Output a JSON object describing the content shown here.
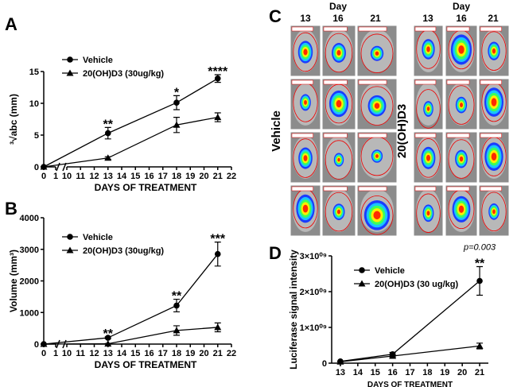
{
  "panel_labels": [
    "A",
    "B",
    "C",
    "D"
  ],
  "image_panel": {
    "day_label": "Day",
    "days": [
      "13",
      "16",
      "21"
    ],
    "groups": [
      "Vehicle",
      "20(OH)D3"
    ]
  },
  "chart_data": [
    {
      "type": "line",
      "x_label": "DAYS OF TREATMENT",
      "y_label": "³√abc (mm)",
      "x": [
        0,
        13,
        18,
        21
      ],
      "xlim": [
        0,
        22
      ],
      "x_break": [
        1,
        10
      ],
      "xticks": [
        0,
        1,
        10,
        11,
        12,
        13,
        14,
        15,
        16,
        17,
        18,
        19,
        20,
        21,
        22
      ],
      "ylim": [
        0,
        15
      ],
      "yticks": [
        0,
        5,
        10,
        15
      ],
      "legend": "upper left",
      "series": [
        {
          "name": "Vehicle",
          "color": "#000000",
          "marker": "circle",
          "values": [
            0,
            5.3,
            10.1,
            13.9
          ],
          "errors": [
            0,
            0.9,
            1.1,
            0.6
          ]
        },
        {
          "name": "20(OH)D3 (30ug/kg)",
          "color": "#000000",
          "marker": "triangle",
          "values": [
            0,
            1.4,
            6.6,
            7.8
          ],
          "errors": [
            0,
            0.2,
            1.2,
            0.7
          ]
        }
      ],
      "annotations": [
        {
          "x": 13,
          "text": "**"
        },
        {
          "x": 18,
          "text": "*"
        },
        {
          "x": 21,
          "text": "****"
        }
      ]
    },
    {
      "type": "line",
      "x_label": "DAYS OF TREATMENT",
      "y_label": "Volume (mm³)",
      "x": [
        0,
        13,
        18,
        21
      ],
      "xlim": [
        0,
        22
      ],
      "x_break": [
        1,
        10
      ],
      "xticks": [
        0,
        1,
        10,
        11,
        12,
        13,
        14,
        15,
        16,
        17,
        18,
        19,
        20,
        21,
        22
      ],
      "ylim": [
        0,
        4000
      ],
      "yticks": [
        0,
        1000,
        2000,
        3000,
        4000
      ],
      "legend": "upper left",
      "series": [
        {
          "name": "Vehicle",
          "color": "#000000",
          "marker": "circle",
          "values": [
            0,
            200,
            1220,
            2850
          ],
          "errors": [
            0,
            30,
            200,
            380
          ]
        },
        {
          "name": "20(OH)D3 (30ug/kg)",
          "color": "#000000",
          "marker": "triangle",
          "values": [
            0,
            10,
            430,
            530
          ],
          "errors": [
            0,
            10,
            150,
            140
          ]
        }
      ],
      "annotations": [
        {
          "x": 13,
          "text": "**"
        },
        {
          "x": 18,
          "text": "**"
        },
        {
          "x": 21,
          "text": "***"
        }
      ]
    },
    {
      "type": "line",
      "x_label": "DAYS OF TREATMENT",
      "y_label": "Luciferase signal intensity",
      "x": [
        13,
        16,
        21
      ],
      "xlim": [
        12.5,
        21.5
      ],
      "xticks": [
        13,
        14,
        15,
        16,
        17,
        18,
        19,
        20,
        21
      ],
      "ylim": [
        0,
        3000000000
      ],
      "yticks": [
        0,
        {
          "value": 1000000000,
          "label": "1×10⁰⁹"
        },
        {
          "value": 2000000000,
          "label": "2×10⁰⁹"
        },
        {
          "value": 3000000000,
          "label": "3×10⁰⁹"
        }
      ],
      "legend": "upper left",
      "series": [
        {
          "name": "Vehicle",
          "color": "#000000",
          "marker": "circle",
          "values": [
            50000000,
            250000000,
            2300000000
          ],
          "errors": [
            0,
            50000000,
            400000000
          ]
        },
        {
          "name": "20(OH)D3 (30 ug/kg)",
          "color": "#000000",
          "marker": "triangle",
          "values": [
            40000000,
            200000000,
            480000000
          ],
          "errors": [
            0,
            30000000,
            80000000
          ]
        }
      ],
      "annotations": [
        {
          "x": 21,
          "text": "p=0.003"
        },
        {
          "x": 21,
          "text": "**"
        }
      ]
    }
  ]
}
